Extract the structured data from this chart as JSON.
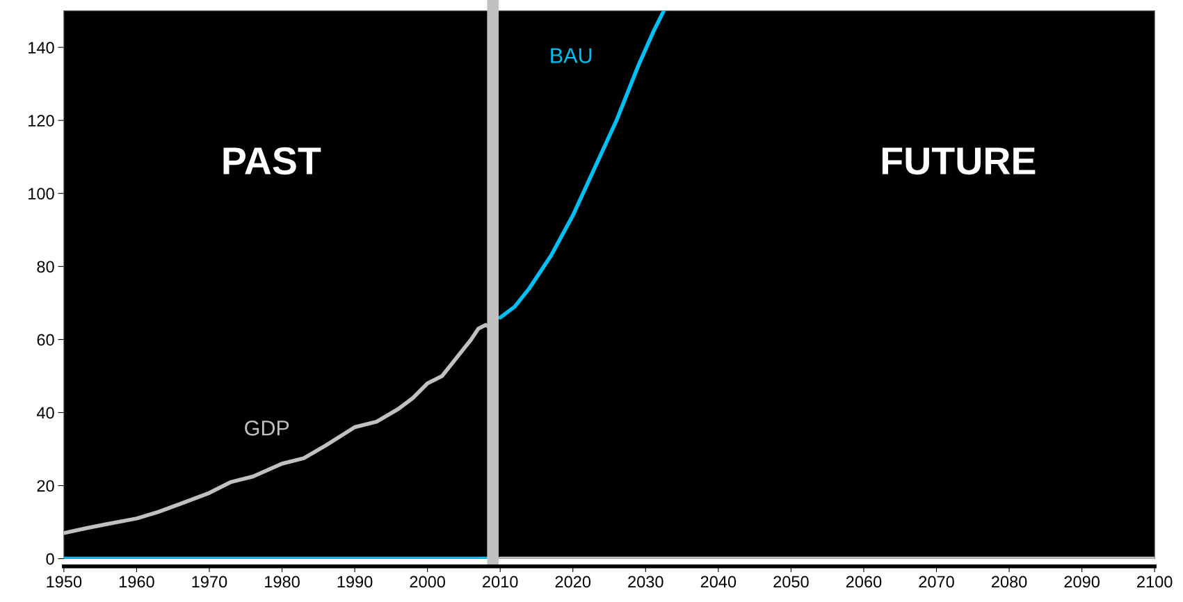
{
  "chart_data": {
    "type": "line",
    "annotations": [
      "PAST",
      "FUTURE"
    ],
    "series": [
      {
        "name": "GDP",
        "color": "#c0c0c0",
        "x": [
          1950,
          1953,
          1956,
          1960,
          1963,
          1966,
          1970,
          1973,
          1976,
          1980,
          1983,
          1986,
          1990,
          1993,
          1996,
          1998,
          2000,
          2002,
          2004,
          2006,
          2007,
          2008,
          2009
        ],
        "values": [
          7,
          8.3,
          9.5,
          11,
          12.8,
          15,
          18,
          21,
          22.5,
          26,
          27.5,
          31,
          36,
          37.5,
          41,
          44,
          48,
          50,
          55,
          60,
          63,
          64,
          63
        ]
      },
      {
        "name": "BAU",
        "color": "#00bff3",
        "x": [
          2010,
          2012,
          2014,
          2017,
          2020,
          2023,
          2026,
          2029,
          2031,
          2032.5
        ],
        "values": [
          66,
          69,
          74,
          83,
          94,
          107,
          120,
          135,
          144,
          150
        ]
      },
      {
        "color": "#00bff3",
        "x": [
          1950,
          2009
        ],
        "values": [
          0,
          0
        ]
      },
      {
        "color": "#c0c0c0",
        "x": [
          2010,
          2100
        ],
        "values": [
          0,
          0
        ]
      }
    ],
    "ref_lines": [
      {
        "axis": "x",
        "value": 2009,
        "color": "#c0c0c0"
      }
    ],
    "xlim": [
      1950,
      2100
    ],
    "xticks": [
      1950,
      1960,
      1970,
      1980,
      1990,
      2000,
      2010,
      2020,
      2030,
      2040,
      2050,
      2060,
      2070,
      2080,
      2090,
      2100
    ],
    "ylim": [
      0,
      150
    ],
    "yticks": [
      0,
      20,
      40,
      60,
      80,
      100,
      120,
      140
    ],
    "grid": false,
    "legend": false
  }
}
